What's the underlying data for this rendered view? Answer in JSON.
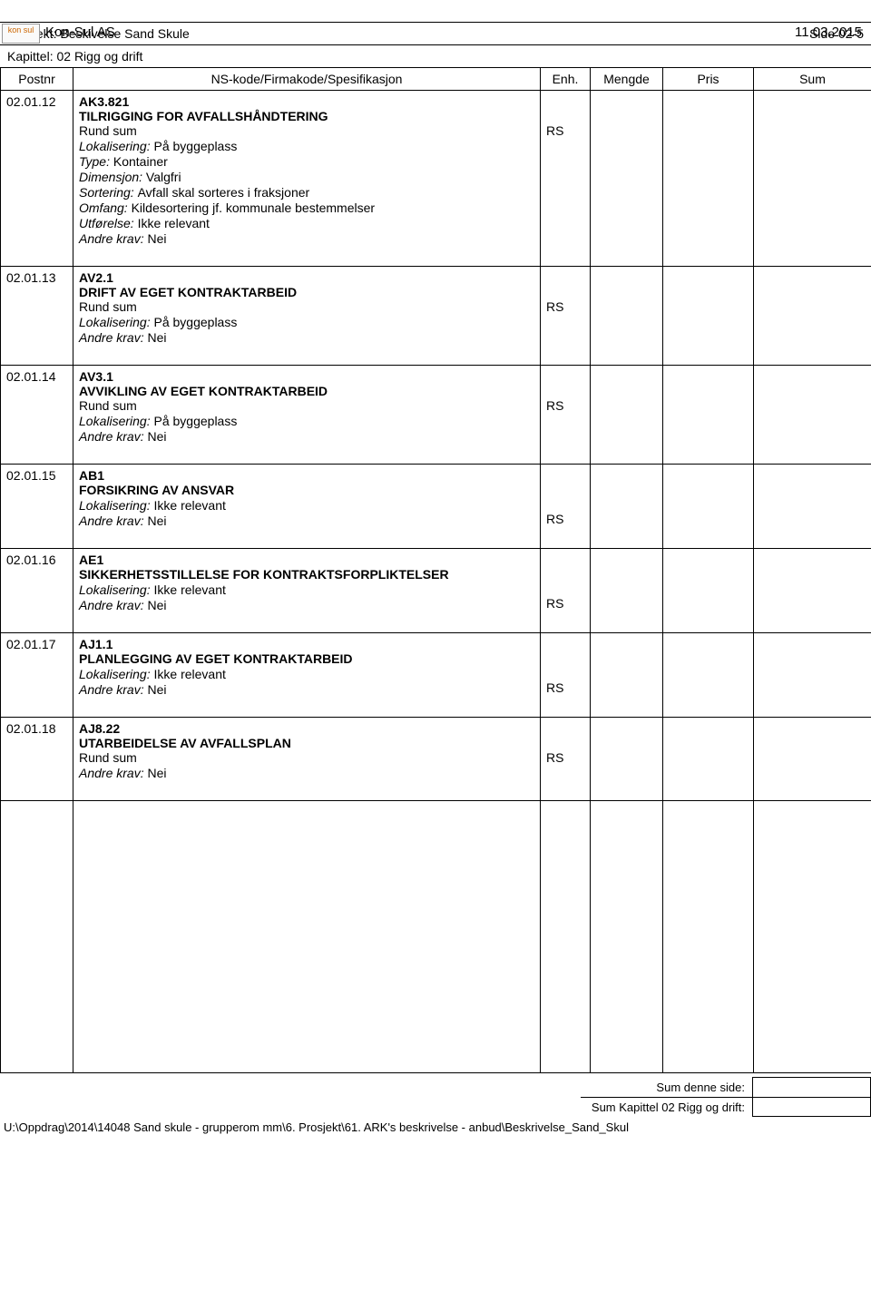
{
  "header": {
    "logo_text": "kon sul",
    "company": "Kon-Sul AS",
    "date": "11.03.2015",
    "project_label": "Prosjekt: Beskivelse Sand Skule",
    "page": "Side 02-5",
    "chapter": "Kapittel: 02 Rigg og drift"
  },
  "columns": {
    "postnr": "Postnr",
    "spec": "NS-kode/Firmakode/Spesifikasjon",
    "enh": "Enh.",
    "mengde": "Mengde",
    "pris": "Pris",
    "sum": "Sum"
  },
  "rows": [
    {
      "postnr": "02.01.12",
      "code": "AK3.821",
      "title": "TILRIGGING FOR AVFALLSHÅNDTERING",
      "rund_sum": "Rund sum",
      "enh": "RS",
      "lines": [
        {
          "label": "Lokalisering:",
          "value": "På byggeplass"
        },
        {
          "label": "Type:",
          "value": "Kontainer"
        },
        {
          "label": "Dimensjon:",
          "value": "Valgfri"
        },
        {
          "label": "Sortering:",
          "value": "Avfall skal sorteres i fraksjoner"
        },
        {
          "label": "Omfang:",
          "value": "Kildesortering jf. kommunale bestemmelser"
        },
        {
          "label": "Utførelse:",
          "value": "Ikke relevant"
        },
        {
          "label": "Andre krav:",
          "value": "Nei"
        }
      ]
    },
    {
      "postnr": "02.01.13",
      "code": "AV2.1",
      "title": "DRIFT AV EGET KONTRAKTARBEID",
      "rund_sum": "Rund sum",
      "enh": "RS",
      "lines": [
        {
          "label": "Lokalisering:",
          "value": "På byggeplass"
        },
        {
          "label": "Andre krav:",
          "value": "Nei"
        }
      ]
    },
    {
      "postnr": "02.01.14",
      "code": "AV3.1",
      "title": "AVVIKLING AV EGET KONTRAKTARBEID",
      "rund_sum": "Rund sum",
      "enh": "RS",
      "lines": [
        {
          "label": "Lokalisering:",
          "value": "På byggeplass"
        },
        {
          "label": "Andre krav:",
          "value": "Nei"
        }
      ]
    },
    {
      "postnr": "02.01.15",
      "code": "AB1",
      "title": "FORSIKRING AV ANSVAR",
      "rund_sum": null,
      "enh_after": "RS",
      "lines": [
        {
          "label": "Lokalisering:",
          "value": "Ikke relevant"
        },
        {
          "label": "Andre krav:",
          "value": "Nei"
        }
      ]
    },
    {
      "postnr": "02.01.16",
      "code": "AE1",
      "title": "SIKKERHETSSTILLELSE FOR KONTRAKTSFORPLIKTELSER",
      "rund_sum": null,
      "enh_after": "RS",
      "lines": [
        {
          "label": "Lokalisering:",
          "value": "Ikke relevant"
        },
        {
          "label": "Andre krav:",
          "value": "Nei"
        }
      ]
    },
    {
      "postnr": "02.01.17",
      "code": "AJ1.1",
      "title": "PLANLEGGING AV EGET KONTRAKTARBEID",
      "rund_sum": null,
      "enh_after": "RS",
      "lines": [
        {
          "label": "Lokalisering:",
          "value": "Ikke relevant"
        },
        {
          "label": "Andre krav:",
          "value": "Nei"
        }
      ]
    },
    {
      "postnr": "02.01.18",
      "code": "AJ8.22",
      "title": "UTARBEIDELSE AV AVFALLSPLAN",
      "rund_sum": "Rund sum",
      "enh": "RS",
      "lines": [
        {
          "label": "Andre krav:",
          "value": "Nei"
        }
      ]
    }
  ],
  "footer": {
    "sum_page": "Sum denne side:",
    "sum_chapter": "Sum Kapittel 02 Rigg og drift:",
    "path": "U:\\Oppdrag\\2014\\14048 Sand skule - grupperom mm\\6. Prosjekt\\61. ARK's beskrivelse - anbud\\Beskrivelse_Sand_Skul"
  }
}
